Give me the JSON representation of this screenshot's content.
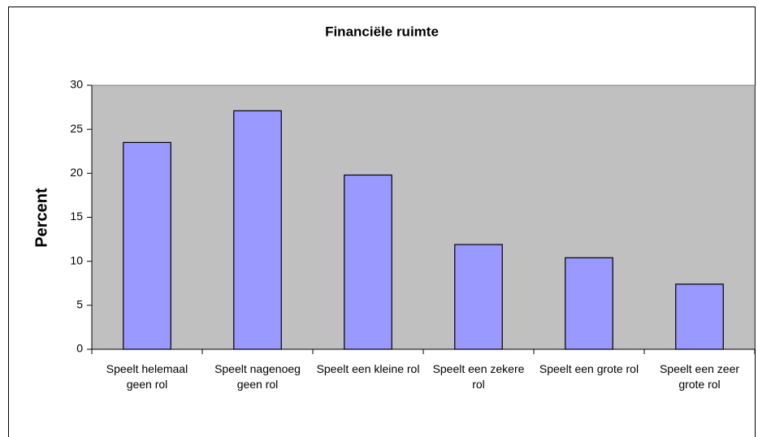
{
  "chart_data": {
    "type": "bar",
    "title": "Financiële ruimte",
    "y_label": "Percent",
    "categories": [
      "Speelt helemaal geen rol",
      "Speelt nagenoeg geen rol",
      "Speelt een kleine rol",
      "Speelt een zekere rol",
      "Speelt een grote rol",
      "Speelt een zeer grote rol"
    ],
    "values": [
      23.5,
      27.1,
      19.8,
      11.9,
      10.4,
      7.4
    ],
    "color": "#9999ff",
    "plot_background": "#c0c0c0",
    "ylim": [
      0,
      30
    ],
    "yticks": [
      0,
      5,
      10,
      15,
      20,
      25,
      30
    ],
    "grid": false
  }
}
